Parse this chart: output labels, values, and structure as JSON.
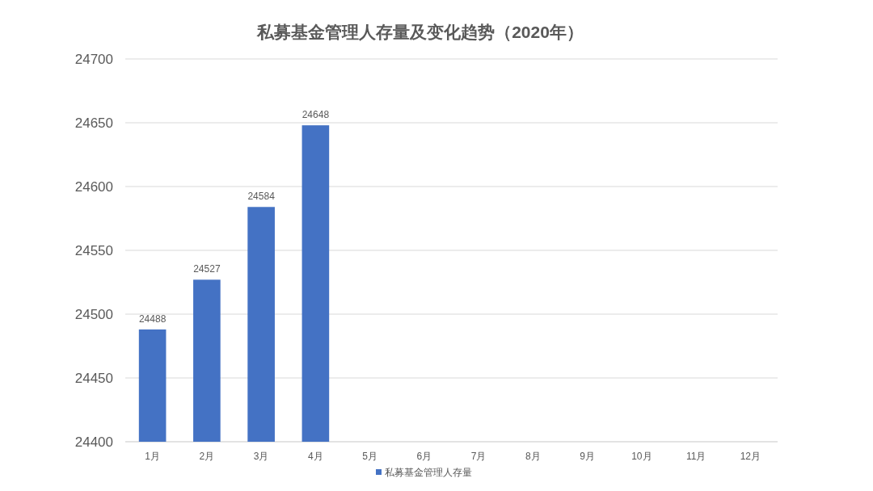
{
  "chart_data": {
    "type": "bar",
    "title": "私募基金管理人存量及变化趋势（2020年）",
    "categories": [
      "1月",
      "2月",
      "3月",
      "4月",
      "5月",
      "6月",
      "7月",
      "8月",
      "9月",
      "10月",
      "11月",
      "12月"
    ],
    "series": [
      {
        "name": "私募基金管理人存量",
        "color": "#4472c4",
        "values": [
          24488,
          24527,
          24584,
          24648,
          null,
          null,
          null,
          null,
          null,
          null,
          null,
          null
        ]
      }
    ],
    "ylim": [
      24400,
      24700
    ],
    "yticks": [
      24400,
      24450,
      24500,
      24550,
      24600,
      24650,
      24700
    ],
    "grid": "y",
    "legend": "bottom",
    "data_labels": true
  }
}
